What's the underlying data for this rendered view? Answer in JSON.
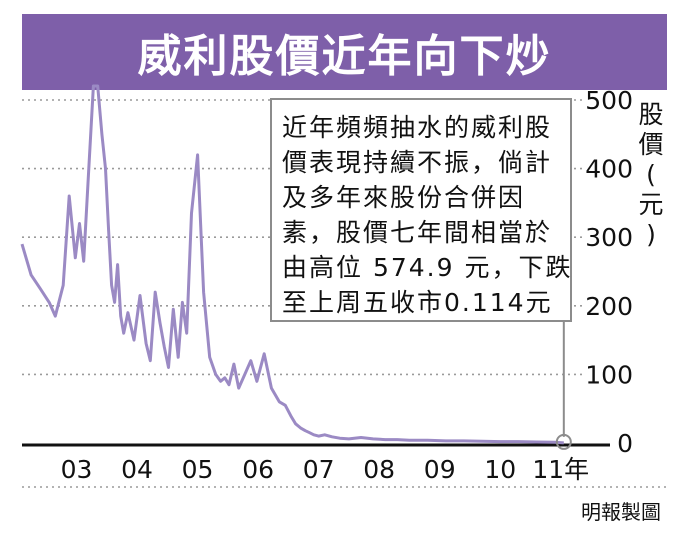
{
  "chart_data": {
    "type": "line",
    "title": "威利股價近年向下炒",
    "xlabel": "",
    "ylabel": "股價(元)",
    "ylim": [
      0,
      500
    ],
    "xlim": [
      2002.6,
      2011.9
    ],
    "y_ticks": [
      "0",
      "100",
      "200",
      "300",
      "400",
      "500"
    ],
    "x_ticks": [
      {
        "label": "03",
        "x": 2003.5
      },
      {
        "label": "04",
        "x": 2004.5
      },
      {
        "label": "05",
        "x": 2005.5
      },
      {
        "label": "06",
        "x": 2006.5
      },
      {
        "label": "07",
        "x": 2007.5
      },
      {
        "label": "08",
        "x": 2008.5
      },
      {
        "label": "09",
        "x": 2009.5
      },
      {
        "label": "10",
        "x": 2010.5
      },
      {
        "label": "11年",
        "x": 2011.5
      }
    ],
    "grid": true,
    "line_color": "#9b8ac4",
    "series": [
      {
        "name": "",
        "x": [
          2002.6,
          2002.75,
          2002.9,
          2003.05,
          2003.15,
          2003.28,
          2003.38,
          2003.48,
          2003.55,
          2003.62,
          2003.7,
          2003.78,
          2003.85,
          2003.92,
          2003.98,
          2004.03,
          2004.08,
          2004.13,
          2004.18,
          2004.23,
          2004.28,
          2004.35,
          2004.45,
          2004.55,
          2004.65,
          2004.72,
          2004.8,
          2004.88,
          2004.95,
          2005.02,
          2005.1,
          2005.18,
          2005.25,
          2005.32,
          2005.4,
          2005.5,
          2005.6,
          2005.7,
          2005.8,
          2005.88,
          2005.95,
          2006.02,
          2006.1,
          2006.18,
          2006.28,
          2006.38,
          2006.48,
          2006.6,
          2006.72,
          2006.85,
          2006.95,
          2007.05,
          2007.12,
          2007.2,
          2007.28,
          2007.35,
          2007.42,
          2007.5,
          2007.6,
          2007.72,
          2007.85,
          2008.0,
          2008.2,
          2008.4,
          2008.6,
          2008.8,
          2009.0,
          2009.3,
          2009.6,
          2009.9,
          2010.2,
          2010.5,
          2010.8,
          2011.1,
          2011.4,
          2011.55
        ],
        "values": [
          290,
          245,
          225,
          205,
          185,
          230,
          360,
          270,
          320,
          265,
          395,
          550,
          560,
          450,
          400,
          310,
          230,
          205,
          260,
          185,
          160,
          190,
          150,
          215,
          145,
          120,
          220,
          175,
          140,
          110,
          195,
          125,
          205,
          160,
          335,
          420,
          220,
          125,
          100,
          90,
          95,
          85,
          115,
          80,
          100,
          120,
          90,
          130,
          80,
          60,
          55,
          38,
          28,
          22,
          18,
          15,
          12,
          10,
          12,
          9,
          7,
          6,
          8,
          6,
          5,
          5,
          4,
          4,
          3,
          3,
          2.5,
          2,
          2,
          1.5,
          1,
          0.114
        ]
      }
    ],
    "annotation": {
      "lines": [
        "近年頻頻抽水的威利股",
        "價表現持續不振，倘計",
        "及多年來股份合併因",
        "素，股價七年間相當於",
        "由高位 574.9 元，下跌",
        "至上周五收市0.114元"
      ],
      "target": {
        "x": 2011.55,
        "y": 0.114
      }
    },
    "source": "明報製圖"
  }
}
